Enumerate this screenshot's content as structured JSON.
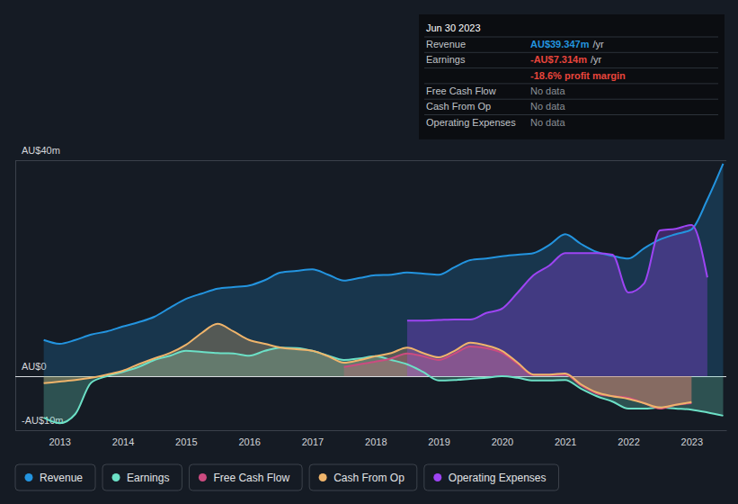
{
  "chart_data": {
    "type": "line",
    "x": [
      2012.75,
      2013,
      2013.25,
      2013.5,
      2013.75,
      2014,
      2014.25,
      2014.5,
      2014.75,
      2015,
      2015.25,
      2015.5,
      2015.75,
      2016,
      2016.25,
      2016.5,
      2016.75,
      2017,
      2017.25,
      2017.5,
      2017.75,
      2018,
      2018.25,
      2018.5,
      2018.75,
      2019,
      2019.25,
      2019.5,
      2019.75,
      2020,
      2020.25,
      2020.5,
      2020.75,
      2021,
      2021.25,
      2021.5,
      2021.75,
      2022,
      2022.25,
      2022.5,
      2022.75,
      2023,
      2023.25,
      2023.5
    ],
    "xlim": [
      2012.3,
      2023.55
    ],
    "xticks": [
      2013,
      2014,
      2015,
      2016,
      2017,
      2018,
      2019,
      2020,
      2021,
      2022,
      2023
    ],
    "ylim": [
      -10,
      40
    ],
    "yticks": [
      {
        "value": 40,
        "label": "AU$40m"
      },
      {
        "value": 0,
        "label": "AU$0"
      },
      {
        "value": -10,
        "label": "-AU$10m"
      }
    ],
    "grid": true,
    "legend": "bottom",
    "series": [
      {
        "name": "Revenue",
        "color": "#2394df",
        "values": [
          6.7,
          6.0,
          6.7,
          7.7,
          8.3,
          9.2,
          10.0,
          11.0,
          12.7,
          14.3,
          15.3,
          16.2,
          16.5,
          16.8,
          17.8,
          19.2,
          19.5,
          19.8,
          18.8,
          17.7,
          18.2,
          18.7,
          18.8,
          19.2,
          19.0,
          18.8,
          20.2,
          21.5,
          21.8,
          22.2,
          22.5,
          22.8,
          24.3,
          26.3,
          24.5,
          23.0,
          22.3,
          21.8,
          23.7,
          25.3,
          26.3,
          27.2,
          32.7,
          39.347
        ]
      },
      {
        "name": "Earnings",
        "color": "#6ce0c6",
        "values": [
          -7.7,
          -8.7,
          -7.0,
          -1.2,
          0,
          0.8,
          1.7,
          3.0,
          3.8,
          4.7,
          4.5,
          4.3,
          4.2,
          3.8,
          4.7,
          5.3,
          5.2,
          4.7,
          3.8,
          3.0,
          3.3,
          3.7,
          3.0,
          2.2,
          0.8,
          -0.8,
          -0.7,
          -0.5,
          -0.3,
          0,
          -0.3,
          -0.8,
          -0.8,
          -0.7,
          -2.3,
          -3.7,
          -4.7,
          -6.0,
          -6.0,
          -5.8,
          -6.0,
          -6.2,
          -6.7,
          -7.314
        ]
      },
      {
        "name": "Free Cash Flow",
        "color": "#cc4b80",
        "values": [
          null,
          null,
          null,
          null,
          null,
          null,
          null,
          null,
          null,
          null,
          null,
          null,
          null,
          null,
          null,
          null,
          null,
          null,
          null,
          1.7,
          2.2,
          2.7,
          3.3,
          4.2,
          3.7,
          3.0,
          4.2,
          5.5,
          5.2,
          4.3,
          2.3,
          0.2,
          0.2,
          0.3,
          -1.7,
          -3.2,
          -3.7,
          -4.0,
          -5.0,
          -6.0,
          -5.3,
          -5.0,
          null,
          null
        ]
      },
      {
        "name": "Cash From Op",
        "color": "#efb46b",
        "values": [
          -1.3,
          -1.0,
          -0.7,
          -0.3,
          0.3,
          1.0,
          2.2,
          3.3,
          4.3,
          5.8,
          8.0,
          9.7,
          8.3,
          6.7,
          6.0,
          5.3,
          5.0,
          4.7,
          3.7,
          2.5,
          3.0,
          3.7,
          4.3,
          5.3,
          4.3,
          3.5,
          4.7,
          6.2,
          5.7,
          4.7,
          2.5,
          0.3,
          0.3,
          0.5,
          -1.5,
          -3.0,
          -3.7,
          -4.2,
          -5.0,
          -5.8,
          -5.3,
          -4.8,
          null,
          null
        ]
      },
      {
        "name": "Operating Expenses",
        "color": "#9d44f3",
        "values": [
          null,
          null,
          null,
          null,
          null,
          null,
          null,
          null,
          null,
          null,
          null,
          null,
          null,
          null,
          null,
          null,
          null,
          null,
          null,
          null,
          null,
          null,
          null,
          10.3,
          10.3,
          10.4,
          10.5,
          10.5,
          11.7,
          12.5,
          15.5,
          18.7,
          20.5,
          22.8,
          22.8,
          22.8,
          22.5,
          15.5,
          17.2,
          27.0,
          27.3,
          28.0,
          18.3,
          null
        ]
      }
    ],
    "annotations": {
      "title": "Jun 30 2023",
      "rows": [
        {
          "label": "Revenue",
          "value": "AU$39.347m",
          "unit": "/yr",
          "color": "#2394df"
        },
        {
          "label": "Earnings",
          "value": "-AU$7.314m",
          "unit": "/yr",
          "color": "#e8453c"
        },
        {
          "value": "-18.6% profit margin",
          "color": "#e8453c"
        },
        {
          "label": "Free Cash Flow",
          "value": "No data"
        },
        {
          "label": "Cash From Op",
          "value": "No data"
        },
        {
          "label": "Operating Expenses",
          "value": "No data"
        }
      ]
    }
  }
}
